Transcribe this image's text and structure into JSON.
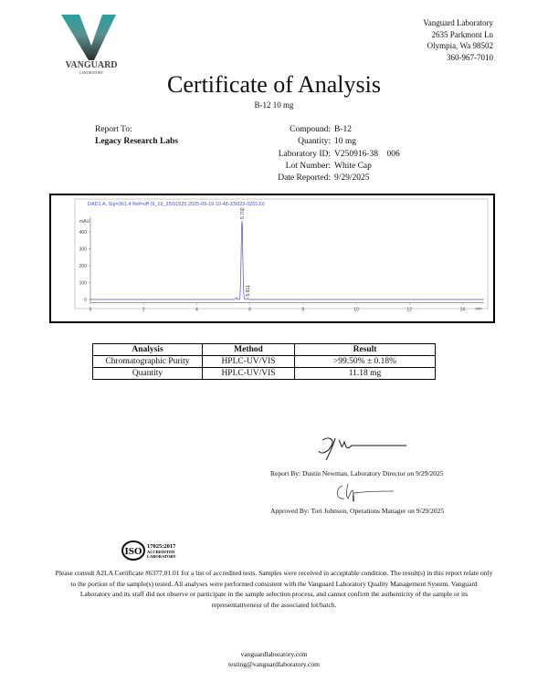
{
  "logo": {
    "letter": "V",
    "name": "VANGUARD",
    "sub": "LABORATORY",
    "colors": {
      "teal": "#2aa1a0",
      "dark": "#3a3a3a"
    }
  },
  "lab_address": {
    "name": "Vanguard Laboratory",
    "street": "2635 Parkmont Ln",
    "city": "Olympia, Wa 98502",
    "phone": "360-967-7010"
  },
  "title": "Certificate of Analysis",
  "subtitle": "B-12 10 mg",
  "report_to": {
    "label": "Report To:",
    "client": "Legacy Research Labs"
  },
  "sample": [
    {
      "label": "Compound:",
      "value": "B-12"
    },
    {
      "label": "Quantity:",
      "value": "10 mg"
    },
    {
      "label": "Laboratory ID:",
      "value": "V250916-38    006"
    },
    {
      "label": "Lot Number:",
      "value": "White Cap"
    },
    {
      "label": "Date Reported:",
      "value": "9/29/2025"
    }
  ],
  "chart_data": {
    "type": "line",
    "title": "DAD1 A, Sig=361,4 Ref=off (9_19_25\\91525 2025-09-19 10-48-33\\023-0201.D)",
    "ylabel": "mAU",
    "xlabel": "min",
    "xlim": [
      0,
      14.8
    ],
    "ylim": [
      -20,
      490
    ],
    "xticks": [
      "0",
      "2",
      "4",
      "6",
      "8",
      "10",
      "12",
      "14"
    ],
    "yticks": [
      "0",
      "100",
      "200",
      "300",
      "400"
    ],
    "color": "#4a4fd0",
    "peaks": [
      {
        "rt": 5.5,
        "height": 12,
        "label": ""
      },
      {
        "rt": 5.702,
        "height": 465,
        "label": "5.702"
      },
      {
        "rt": 5.911,
        "height": 8,
        "label": "5.911"
      }
    ]
  },
  "results": {
    "headers": [
      "Analysis",
      "Method",
      "Result"
    ],
    "rows": [
      [
        "Chromatographic Purity",
        "HPLC-UV/VIS",
        ">99.50% ± 0.18%"
      ],
      [
        "Quantity",
        "HPLC-UV/VIS",
        "11.18 mg"
      ]
    ]
  },
  "signatures": {
    "report_by": "Report By: Dustin Newman, Laboratory Director on  9/29/2025",
    "approved_by": "Approved By: Tori Johnson, Operations Manager on  9/29/2025"
  },
  "iso_badge": {
    "mark": "ISO",
    "line1": "17025:2017",
    "line2": "ACCREDITED",
    "line3": "LABORATORY"
  },
  "disclaimer": "Please consult A2LA Certificate #6377.01.01 for a list of accredited tests. Samples were received in acceptable condition. The result(s) in this report relate only to the portion of the sample(s) tested. All analyses were performed consistent with the Vanguard Laboratory Quality Management System. Vanguard Laboratory and its staff did not observe or participate in the sample selection process, and cannot confirm the authenticity of the sample or its representativeness of the associated lot/batch.",
  "footer": {
    "website": "vanguardlaboratory.com",
    "email": "testing@vanguardlaboratory.com"
  }
}
